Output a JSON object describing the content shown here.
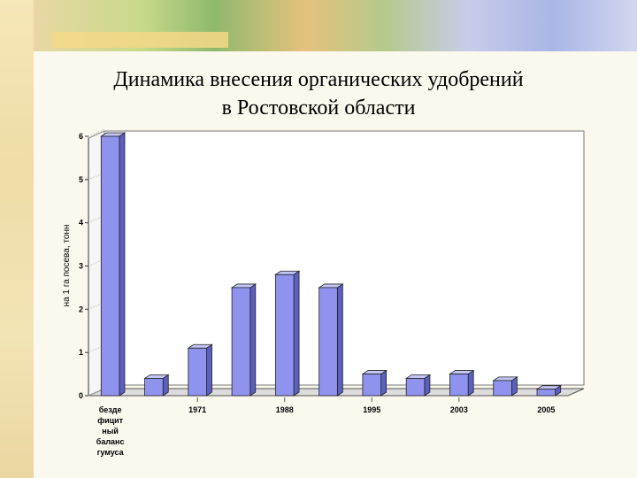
{
  "slide": {
    "title_line1": "Динамика внесения органических удобрений",
    "title_line2": "в Ростовской области"
  },
  "colors": {
    "bar_front": "#8f93ee",
    "bar_side": "#5b5fbf",
    "bar_top": "#c3c5f6",
    "plot_bg": "#dcdcdc"
  },
  "chart_data": {
    "type": "bar",
    "title": "",
    "ylabel": "на 1 га посева, тонн",
    "xlabel": "",
    "ylim": [
      0,
      6
    ],
    "yticks": [
      "0",
      "1",
      "2",
      "3",
      "4",
      "5",
      "6"
    ],
    "categories": [
      "бездефицитный баланс гумуса",
      "",
      "1971",
      "",
      "1988",
      "",
      "1995",
      "",
      "2003",
      "",
      "2005"
    ],
    "category_label_lines": [
      [
        "безде",
        "фицит",
        "ный",
        "баланс",
        "гумуса"
      ],
      [],
      [
        "1971"
      ],
      [],
      [
        "1988"
      ],
      [],
      [
        "1995"
      ],
      [],
      [
        "2003"
      ],
      [],
      [
        "2005"
      ]
    ],
    "values": [
      6.0,
      0.4,
      1.1,
      2.5,
      2.8,
      2.5,
      0.5,
      0.4,
      0.5,
      0.35,
      0.15
    ],
    "grid": false,
    "legend": "none"
  }
}
